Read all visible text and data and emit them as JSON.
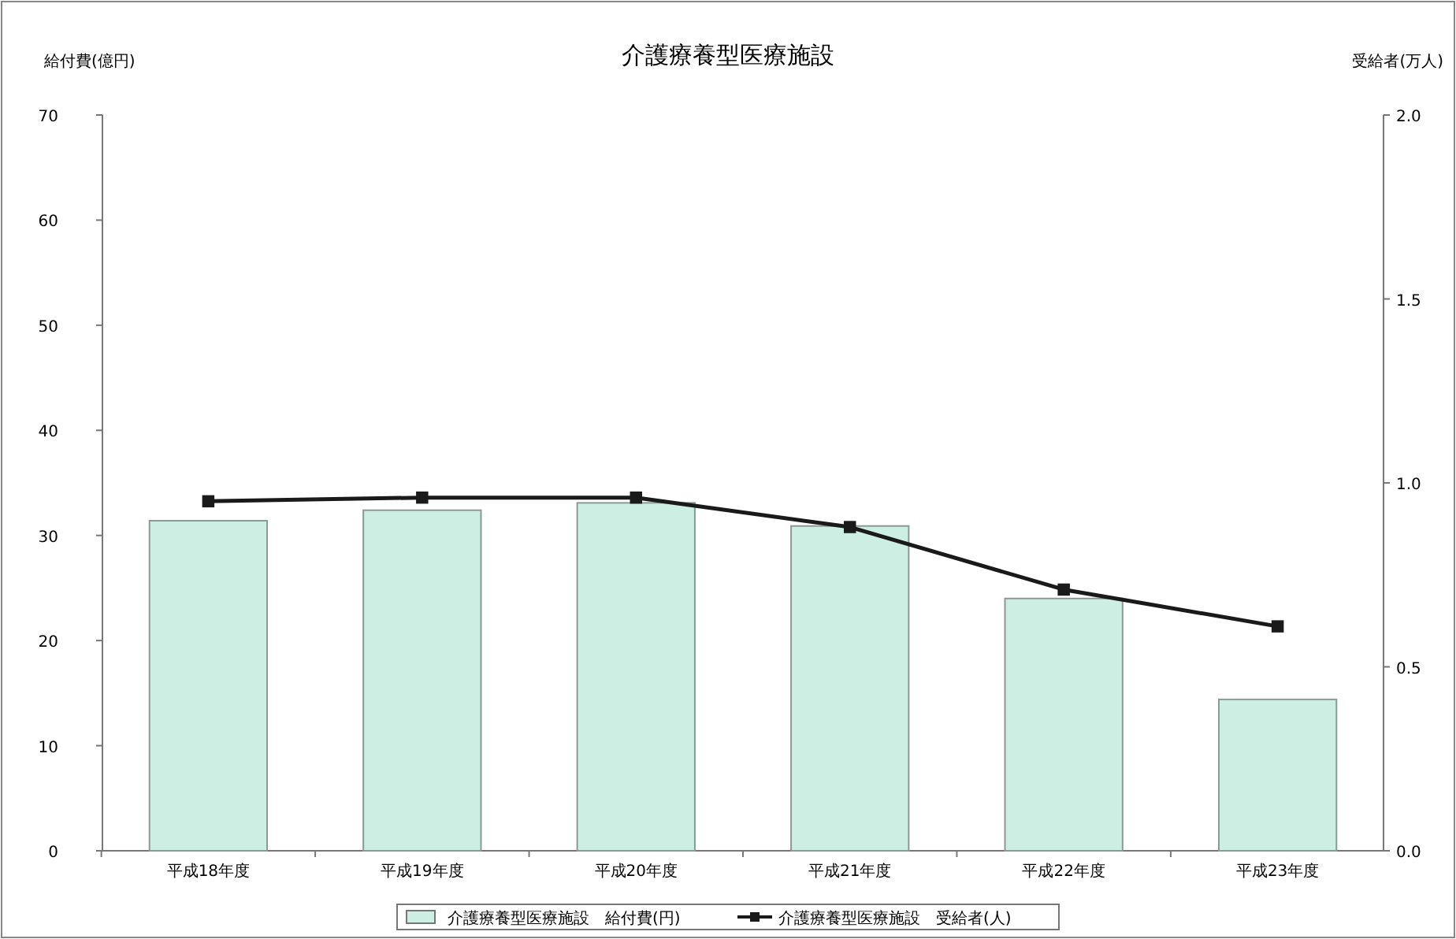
{
  "chart_data": {
    "type": "bar",
    "title": "介護療養型医療施設",
    "ylabel": "給付費(億円)",
    "y2label": "受給者(万人)",
    "categories": [
      "平成18年度",
      "平成19年度",
      "平成20年度",
      "平成21年度",
      "平成22年度",
      "平成23年度"
    ],
    "series": [
      {
        "name": "介護療養型医療施設　給付費(円)",
        "color": "#cdeee3",
        "values": [
          31.4,
          32.4,
          33.1,
          30.9,
          24.0,
          14.4
        ]
      },
      {
        "name": "介護療養型医療施設　受給者(人)",
        "type": "line",
        "axis": "y2",
        "color": "#1a1a1a",
        "marker": "square",
        "values": [
          0.95,
          0.96,
          0.96,
          0.88,
          0.71,
          0.61
        ]
      }
    ],
    "ylim": [
      0,
      70
    ],
    "yticks": [
      0,
      10,
      20,
      30,
      40,
      50,
      60,
      70
    ],
    "y2lim": [
      0,
      2
    ],
    "y2ticks": [
      {
        "value": 0,
        "label": "0.0"
      },
      {
        "value": 0.5,
        "label": "0.5"
      },
      {
        "value": 1,
        "label": "1.0"
      },
      {
        "value": 1.5,
        "label": "1.5"
      },
      {
        "value": 2,
        "label": "2.0"
      }
    ],
    "legend": "bottom",
    "grid": false
  }
}
